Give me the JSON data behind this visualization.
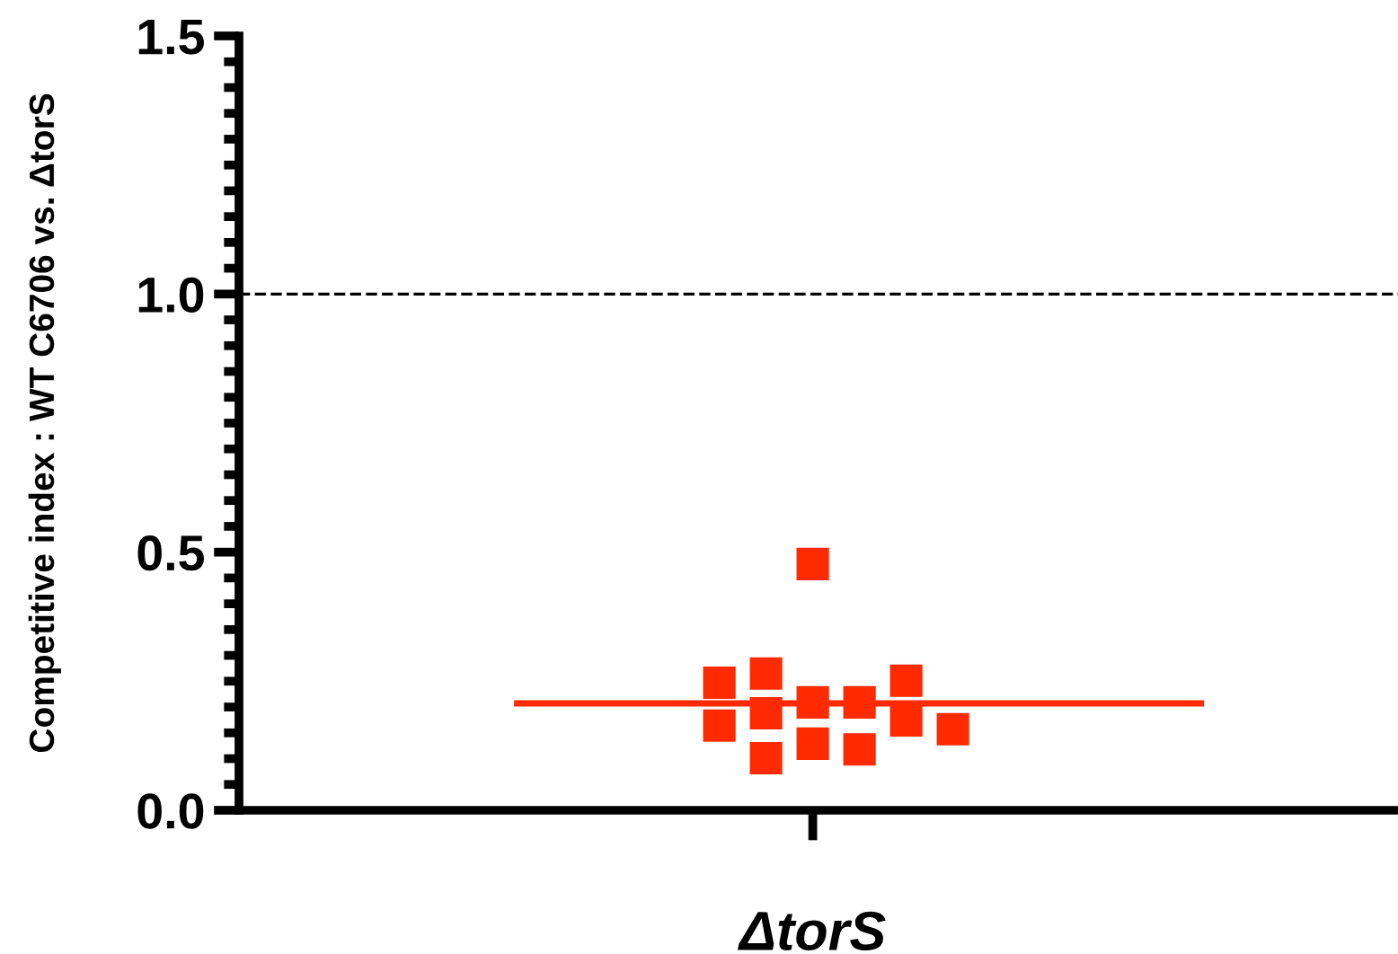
{
  "chart_data": {
    "type": "scatter",
    "ylabel": "Competitive index : WT C6706 vs. ΔtorS",
    "categories": [
      "ΔtorS"
    ],
    "series": [
      {
        "color": "#ff2a00",
        "marker": "square",
        "x": [
          "ΔtorS",
          "ΔtorS",
          "ΔtorS",
          "ΔtorS",
          "ΔtorS",
          "ΔtorS",
          "ΔtorS",
          "ΔtorS",
          "ΔtorS",
          "ΔtorS",
          "ΔtorS",
          "ΔtorS",
          "ΔtorS"
        ],
        "values": [
          0.477,
          0.209,
          0.209,
          0.188,
          0.251,
          0.247,
          0.265,
          0.174,
          0.164,
          0.157,
          0.129,
          0.118,
          0.101
        ]
      }
    ],
    "ylim": [
      0,
      1.5
    ],
    "yticks": [
      {
        "value": 0,
        "label": "0.0"
      },
      0.5,
      {
        "value": 1,
        "label": "1.0"
      },
      1.5
    ],
    "ref_lines": [
      {
        "axis": "y",
        "value": 1.0,
        "color": "#000000",
        "line_style": "dashed"
      },
      {
        "axis": "y",
        "value": 0.207,
        "color": "#ff2a00",
        "line_style": "solid"
      }
    ],
    "grid": false,
    "legend": false
  }
}
